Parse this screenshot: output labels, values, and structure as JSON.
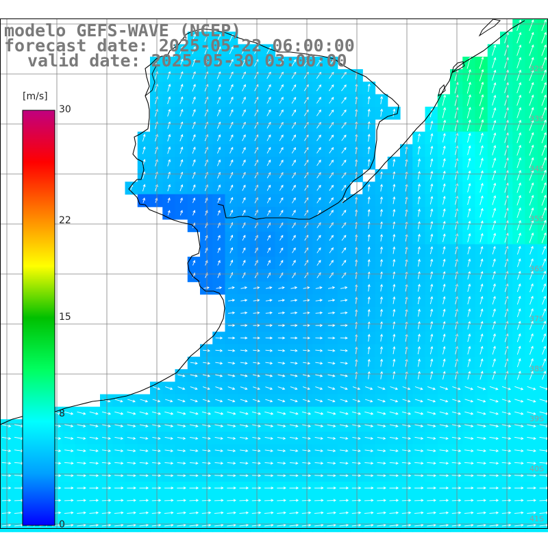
{
  "title": {
    "line1": "modelo GEFS-WAVE (NCEP)",
    "line2": "forecast date: 2025-05-22 06:00:00",
    "line3": "valid date: 2025-05-30 03:00:00"
  },
  "colorbar": {
    "units": "[m/s]",
    "ticks": [
      {
        "value": 30,
        "label": "30"
      },
      {
        "value": 22,
        "label": "22"
      },
      {
        "value": 15,
        "label": "15"
      },
      {
        "value": 8,
        "label": "8"
      },
      {
        "value": 0,
        "label": "0"
      }
    ],
    "min": 0,
    "max": 30,
    "stops": [
      "#0000ff",
      "#00a0ff",
      "#00ffff",
      "#00ff60",
      "#00c000",
      "#ffff00",
      "#ff8000",
      "#ff0000",
      "#c00080"
    ]
  },
  "map": {
    "variable": "wind speed and direction",
    "colors": {
      "land": "#ffffff",
      "coast": "#000000",
      "grid": "#7f7f7f",
      "arrows": "#ffffff"
    },
    "lat_labels": [
      {
        "lat": -32.5,
        "label": "32S"
      },
      {
        "lat": -33.5,
        "label": "33S"
      },
      {
        "lat": -34.5,
        "label": "34S"
      },
      {
        "lat": -35.5,
        "label": "35S"
      },
      {
        "lat": -36.5,
        "label": "36S"
      },
      {
        "lat": -37.5,
        "label": "37S"
      },
      {
        "lat": -38.5,
        "label": "38S"
      },
      {
        "lat": -39.5,
        "label": "39S"
      },
      {
        "lat": -40.5,
        "label": "40S"
      },
      {
        "lat": -41.5,
        "label": "41S"
      }
    ]
  }
}
